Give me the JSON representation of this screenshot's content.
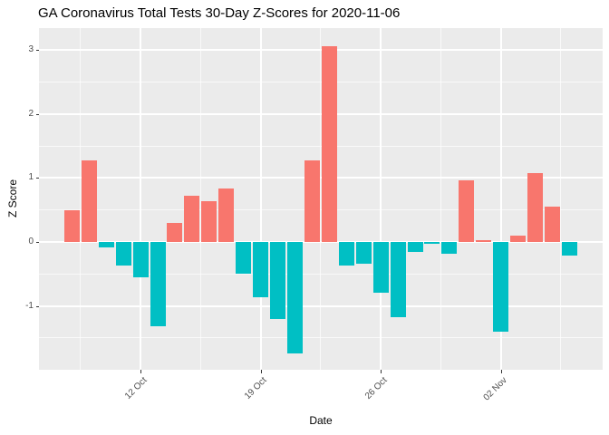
{
  "title": "GA Coronavirus Total Tests 30-Day Z-Scores for 2020-11-06",
  "chart_data": {
    "type": "bar",
    "title": "GA Coronavirus Total Tests 30-Day Z-Scores for 2020-11-06",
    "xlabel": "Date",
    "ylabel": "Z Score",
    "dates": [
      "2020-10-08",
      "2020-10-09",
      "2020-10-10",
      "2020-10-11",
      "2020-10-12",
      "2020-10-13",
      "2020-10-14",
      "2020-10-15",
      "2020-10-16",
      "2020-10-17",
      "2020-10-18",
      "2020-10-19",
      "2020-10-20",
      "2020-10-21",
      "2020-10-22",
      "2020-10-23",
      "2020-10-24",
      "2020-10-25",
      "2020-10-26",
      "2020-10-27",
      "2020-10-28",
      "2020-10-29",
      "2020-10-30",
      "2020-10-31",
      "2020-11-01",
      "2020-11-02",
      "2020-11-03",
      "2020-11-04",
      "2020-11-05",
      "2020-11-06"
    ],
    "values": [
      0.5,
      1.28,
      -0.09,
      -0.37,
      -0.55,
      -1.32,
      0.3,
      0.72,
      0.64,
      0.83,
      -0.5,
      -0.87,
      -1.2,
      -1.74,
      1.28,
      3.06,
      -0.37,
      -0.34,
      -0.79,
      -1.17,
      -0.16,
      -0.03,
      -0.18,
      0.97,
      0.03,
      -1.4,
      0.1,
      1.08,
      0.55,
      -0.21
    ],
    "x_ticks": [
      {
        "index": 4,
        "label": "12 Oct"
      },
      {
        "index": 11,
        "label": "19 Oct"
      },
      {
        "index": 18,
        "label": "26 Oct"
      },
      {
        "index": 25,
        "label": "02 Nov"
      }
    ],
    "x_minor_indices": [
      0.5,
      7.5,
      14.5,
      21.5,
      28.5
    ],
    "y_ticks": [
      3,
      2,
      1,
      0,
      -1
    ],
    "y_minor_ticks": [
      2.5,
      1.5,
      0.5,
      -0.5,
      -1.5
    ],
    "ylim": [
      -2.0,
      3.34
    ],
    "colors": {
      "positive": "#F8766D",
      "negative": "#00BFC4",
      "panel_bg": "#EBEBEB",
      "grid": "#FFFFFF",
      "axis_text": "#4D4D4D",
      "tick_mark": "#333333"
    },
    "legend": "none",
    "grid": "major and minor, white on grey panel"
  }
}
